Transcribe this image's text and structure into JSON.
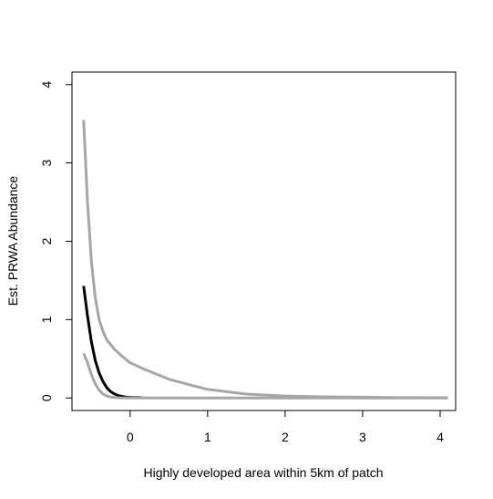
{
  "chart_data": {
    "type": "line",
    "xlabel": "Highly developed area within 5km of patch",
    "ylabel": "Est. PRWA Abundance",
    "xlim": [
      -0.75,
      4.2
    ],
    "ylim": [
      -0.16,
      4.16
    ],
    "x_ticks": [
      0,
      1,
      2,
      3,
      4
    ],
    "y_ticks": [
      0,
      1,
      2,
      3,
      4
    ],
    "grid": false,
    "series": [
      {
        "role": "upper-bound",
        "color": "#a6a6a6",
        "x": [
          -0.6,
          -0.55,
          -0.5,
          -0.45,
          -0.4,
          -0.35,
          -0.3,
          -0.2,
          -0.1,
          0,
          0.2,
          0.5,
          0.8,
          1.0,
          1.5,
          2.0,
          2.5,
          3.0,
          3.5,
          4.1
        ],
        "y": [
          3.55,
          2.5,
          1.75,
          1.28,
          1.0,
          0.85,
          0.74,
          0.62,
          0.53,
          0.45,
          0.36,
          0.24,
          0.16,
          0.11,
          0.05,
          0.025,
          0.015,
          0.01,
          0.005,
          0.003
        ]
      },
      {
        "role": "estimate",
        "color": "#000000",
        "x": [
          -0.6,
          -0.55,
          -0.5,
          -0.45,
          -0.4,
          -0.35,
          -0.3,
          -0.25,
          -0.2,
          -0.15,
          -0.1,
          -0.05,
          0,
          0.15
        ],
        "y": [
          1.43,
          1.05,
          0.72,
          0.48,
          0.32,
          0.21,
          0.13,
          0.08,
          0.05,
          0.03,
          0.02,
          0.01,
          0.008,
          0.005
        ]
      },
      {
        "role": "lower-bound",
        "color": "#a6a6a6",
        "x": [
          -0.6,
          -0.55,
          -0.5,
          -0.45,
          -0.4,
          -0.35,
          -0.3,
          -0.25,
          -0.2,
          -0.1,
          0,
          0.5,
          1.0,
          2.0,
          3.0,
          4.1
        ],
        "y": [
          0.57,
          0.45,
          0.3,
          0.18,
          0.1,
          0.05,
          0.025,
          0.012,
          0.006,
          0.002,
          0.001,
          0.0,
          0.0,
          0.0,
          0.0,
          0.0
        ]
      }
    ]
  }
}
